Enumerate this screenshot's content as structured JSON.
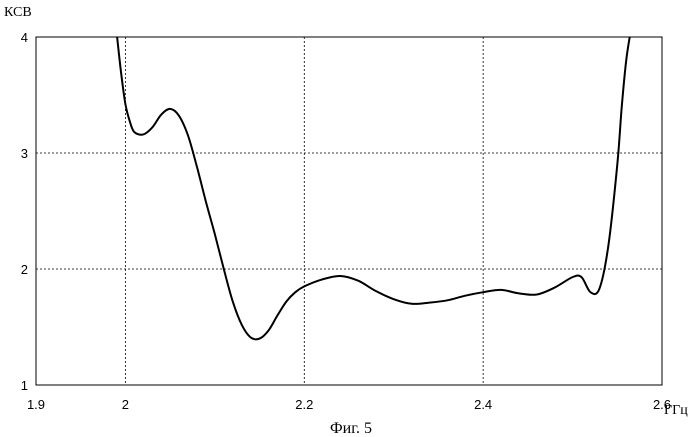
{
  "chart_data": {
    "type": "line",
    "title": "",
    "ylabel": "КСВ",
    "xlabel": "ГГц",
    "caption": "Фиг. 5",
    "xlim": [
      1.9,
      2.6
    ],
    "ylim": [
      1,
      4
    ],
    "x_ticks": [
      "1.9",
      "2",
      "2.2",
      "2.4",
      "2.6"
    ],
    "y_ticks": [
      "4",
      "3",
      "2",
      "1"
    ],
    "grid": "dotted",
    "series": [
      {
        "color": "#000000",
        "x": [
          1.99,
          1.995,
          2.0,
          2.005,
          2.01,
          2.02,
          2.03,
          2.04,
          2.05,
          2.06,
          2.07,
          2.08,
          2.09,
          2.1,
          2.11,
          2.12,
          2.13,
          2.14,
          2.15,
          2.16,
          2.17,
          2.18,
          2.19,
          2.2,
          2.22,
          2.24,
          2.26,
          2.28,
          2.3,
          2.32,
          2.34,
          2.36,
          2.38,
          2.4,
          2.42,
          2.44,
          2.46,
          2.48,
          2.5,
          2.51,
          2.52,
          2.53,
          2.54,
          2.55,
          2.555,
          2.56,
          2.565
        ],
        "y": [
          4.05,
          3.7,
          3.42,
          3.27,
          3.18,
          3.16,
          3.22,
          3.33,
          3.38,
          3.32,
          3.15,
          2.88,
          2.58,
          2.3,
          2.0,
          1.72,
          1.52,
          1.41,
          1.4,
          1.47,
          1.6,
          1.72,
          1.8,
          1.85,
          1.91,
          1.94,
          1.9,
          1.81,
          1.74,
          1.7,
          1.71,
          1.73,
          1.77,
          1.8,
          1.82,
          1.79,
          1.78,
          1.84,
          1.93,
          1.93,
          1.8,
          1.83,
          2.2,
          2.9,
          3.4,
          3.8,
          4.05
        ]
      }
    ]
  }
}
